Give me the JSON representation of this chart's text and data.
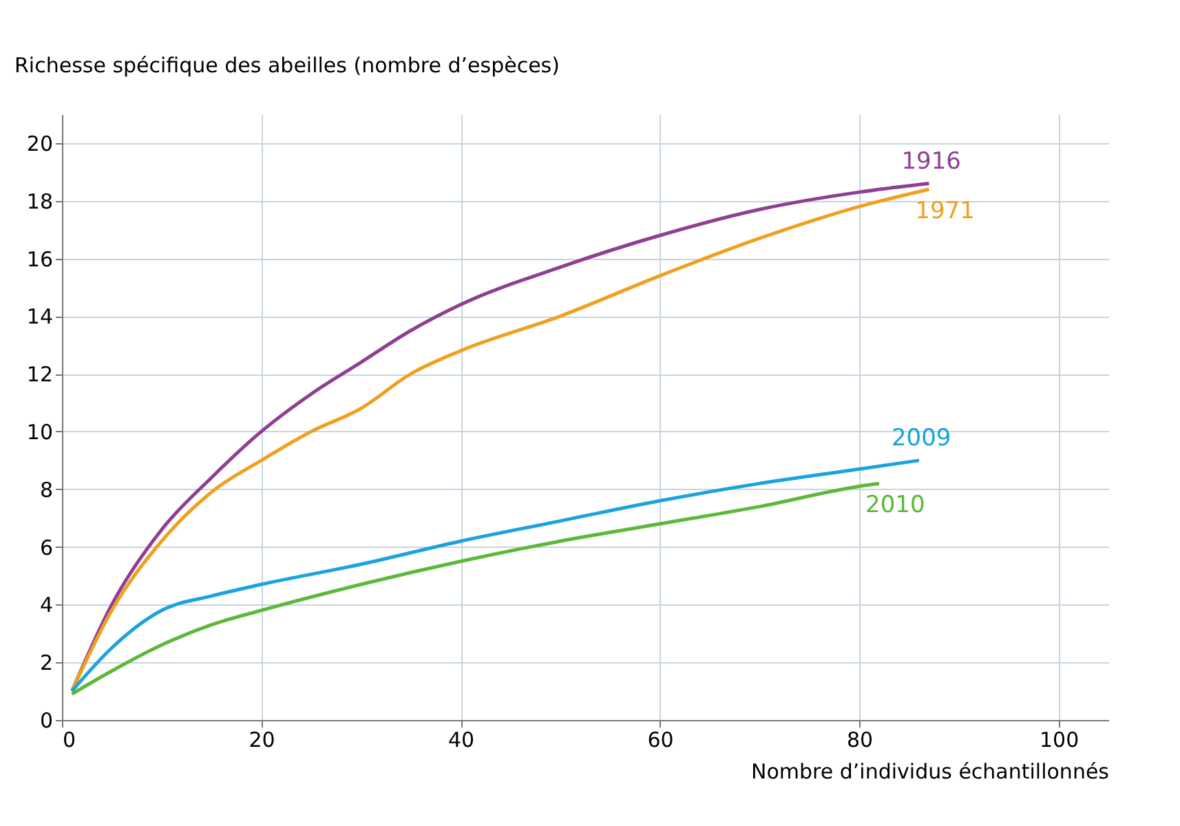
{
  "chart_data": {
    "type": "line",
    "ylabel": "Richesse spécifique des abeilles (nombre d’espèces)",
    "xlabel": "Nombre d’individus échantillonnés",
    "xlim": [
      0,
      105
    ],
    "xticks": [
      0,
      20,
      40,
      60,
      80,
      100
    ],
    "ylim": [
      0,
      21
    ],
    "yticks": [
      0,
      2,
      4,
      6,
      8,
      10,
      12,
      14,
      16,
      18,
      20
    ],
    "grid": true,
    "legend": false,
    "marker": "none",
    "line_style": "solid",
    "series": [
      {
        "name": "1916",
        "color": "#8e3f93",
        "x": [
          1,
          5,
          10,
          15,
          20,
          25,
          30,
          35,
          40,
          50,
          60,
          70,
          80,
          87
        ],
        "values": [
          1,
          4,
          6.6,
          8.4,
          10,
          11.3,
          12.4,
          13.5,
          14.4,
          15.7,
          16.8,
          17.7,
          18.3,
          18.6
        ]
      },
      {
        "name": "1971",
        "color": "#f0a020",
        "x": [
          1,
          5,
          10,
          15,
          20,
          25,
          30,
          35,
          40,
          50,
          60,
          70,
          80,
          87
        ],
        "values": [
          1,
          3.8,
          6.2,
          7.9,
          9,
          10,
          10.8,
          12,
          12.8,
          14,
          15.4,
          16.7,
          17.8,
          18.4
        ]
      },
      {
        "name": "2009",
        "color": "#1ba3dc",
        "x": [
          1,
          5,
          10,
          15,
          20,
          30,
          40,
          50,
          60,
          70,
          80,
          86
        ],
        "values": [
          1,
          2.5,
          3.8,
          4.3,
          4.7,
          5.4,
          6.2,
          6.9,
          7.6,
          8.2,
          8.7,
          9.0
        ]
      },
      {
        "name": "2010",
        "color": "#5cb83a",
        "x": [
          1,
          5,
          10,
          15,
          20,
          30,
          40,
          50,
          60,
          70,
          80,
          82
        ],
        "values": [
          0.9,
          1.7,
          2.6,
          3.3,
          3.8,
          4.7,
          5.5,
          6.2,
          6.8,
          7.4,
          8.1,
          8.2
        ]
      }
    ]
  }
}
